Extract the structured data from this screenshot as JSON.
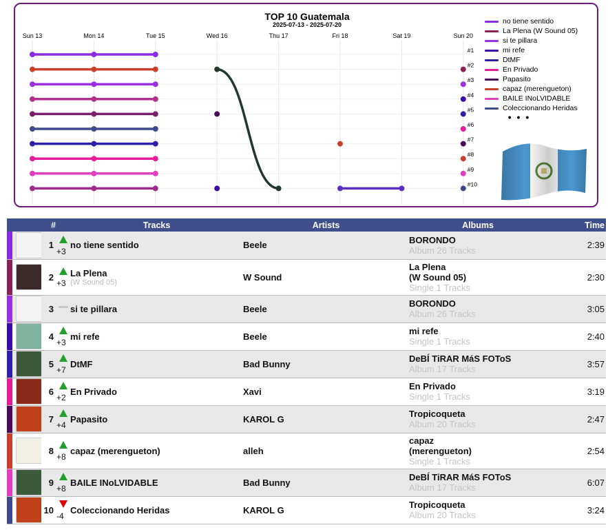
{
  "chart_data": {
    "type": "line",
    "title": "TOP 10 Guatemala",
    "subtitle": "2025-07-13 - 2025-07-20",
    "x": [
      "Sun 13",
      "Mon 14",
      "Tue 15",
      "Wed 16",
      "Thu 17",
      "Fri 18",
      "Sat 19",
      "Sun 20"
    ],
    "rank_labels": [
      "#1",
      "#2",
      "#3",
      "#4",
      "#5",
      "#6",
      "#7",
      "#8",
      "#9",
      "#10"
    ],
    "ylim": [
      1,
      10
    ],
    "y_inverted": true,
    "series": [
      {
        "name": "no tiene sentido",
        "color": "#8a2be2",
        "values": [
          1,
          1,
          1,
          null,
          null,
          null,
          null,
          null
        ]
      },
      {
        "name": "La Plena (W Sound 05)",
        "color": "#8b2257",
        "values": [
          null,
          null,
          null,
          null,
          null,
          null,
          null,
          2
        ]
      },
      {
        "name": "si te pillara",
        "color": "#9b30e0",
        "values": [
          3,
          3,
          3,
          null,
          null,
          null,
          null,
          3
        ]
      },
      {
        "name": "mi refe",
        "color": "#3a0ca3",
        "values": [
          null,
          null,
          null,
          10,
          null,
          null,
          null,
          4
        ]
      },
      {
        "name": "DtMF",
        "color": "#2e1fa8",
        "values": [
          7,
          7,
          7,
          null,
          null,
          null,
          null,
          5
        ]
      },
      {
        "name": "En Privado",
        "color": "#e61c9a",
        "values": [
          8,
          8,
          8,
          null,
          null,
          null,
          null,
          6
        ]
      },
      {
        "name": "Papasito",
        "color": "#4a0a5a",
        "values": [
          null,
          null,
          null,
          5,
          null,
          null,
          null,
          7
        ]
      },
      {
        "name": "capaz (merengueton)",
        "color": "#c8402a",
        "values": [
          2,
          2,
          2,
          null,
          null,
          7,
          null,
          8
        ]
      },
      {
        "name": "BAILE INoLVIDABLE",
        "color": "#e040c0",
        "values": [
          9,
          9,
          9,
          null,
          null,
          null,
          null,
          9
        ]
      },
      {
        "name": "Coleccionando Heridas",
        "color": "#3f4a8c",
        "values": [
          6,
          6,
          6,
          null,
          null,
          null,
          null,
          10
        ]
      },
      {
        "name": "",
        "color": "#1f3a2a",
        "values": [
          null,
          null,
          null,
          2,
          10,
          null,
          null,
          null
        ]
      },
      {
        "name": "",
        "color": "#9e2a8a",
        "values": [
          10,
          10,
          10,
          null,
          null,
          null,
          null,
          null
        ]
      },
      {
        "name": "",
        "color": "#7a1f6e",
        "values": [
          5,
          5,
          5,
          null,
          null,
          null,
          null,
          null
        ]
      },
      {
        "name": "",
        "color": "#5a2fc0",
        "values": [
          null,
          null,
          null,
          null,
          null,
          10,
          10,
          null
        ]
      },
      {
        "name": "",
        "color": "#b0308a",
        "values": [
          4,
          4,
          4,
          null,
          null,
          null,
          null,
          null
        ]
      }
    ],
    "legend_placement": "right",
    "grid": true
  },
  "legend": {
    "items": [
      {
        "label": "no tiene sentido",
        "color": "#8a2be2"
      },
      {
        "label": "La Plena (W Sound 05)",
        "color": "#8b2257"
      },
      {
        "label": "si te pillara",
        "color": "#9b30e0"
      },
      {
        "label": "mi refe",
        "color": "#3a0ca3"
      },
      {
        "label": "DtMF",
        "color": "#2e1fa8"
      },
      {
        "label": "En Privado",
        "color": "#e61c9a"
      },
      {
        "label": "Papasito",
        "color": "#4a0a5a"
      },
      {
        "label": "capaz (merengueton)",
        "color": "#c8402a"
      },
      {
        "label": "BAILE INoLVIDABLE",
        "color": "#e040c0"
      },
      {
        "label": "Coleccionando Heridas",
        "color": "#3f4a8c"
      }
    ],
    "more": "• • •"
  },
  "table": {
    "headers": {
      "rank": "#",
      "tracks": "Tracks",
      "artists": "Artists",
      "albums": "Albums",
      "time": "Time"
    },
    "rows": [
      {
        "rank": "1",
        "dir": "up",
        "change": "+3",
        "track": "no tiene sentido",
        "track_sub": "",
        "artist": "Beele",
        "album": "BORONDO",
        "album_sub": "Album 26 Tracks",
        "time": "2:39",
        "color": "#8a2be2",
        "cover": "#f4f4f4"
      },
      {
        "rank": "2",
        "dir": "up",
        "change": "+3",
        "track": "La Plena",
        "track_sub": "(W Sound 05)",
        "artist": "W Sound",
        "album": "La Plena\n(W Sound 05)",
        "album_sub": "Single 1 Tracks",
        "time": "2:30",
        "color": "#8b2257",
        "cover": "#3a2a2a"
      },
      {
        "rank": "3",
        "dir": "same",
        "change": "",
        "track": "si te pillara",
        "track_sub": "",
        "artist": "Beele",
        "album": "BORONDO",
        "album_sub": "Album 26 Tracks",
        "time": "3:05",
        "color": "#9b30e0",
        "cover": "#f4f4f4"
      },
      {
        "rank": "4",
        "dir": "up",
        "change": "+3",
        "track": "mi refe",
        "track_sub": "",
        "artist": "Beele",
        "album": "mi refe",
        "album_sub": "Single 1 Tracks",
        "time": "2:40",
        "color": "#3a0ca3",
        "cover": "#7fb3a0"
      },
      {
        "rank": "5",
        "dir": "up",
        "change": "+7",
        "track": "DtMF",
        "track_sub": "",
        "artist": "Bad Bunny",
        "album": "DeBÍ TiRAR MáS FOToS",
        "album_sub": "Album 17 Tracks",
        "time": "3:57",
        "color": "#2e1fa8",
        "cover": "#3d5a3a"
      },
      {
        "rank": "6",
        "dir": "up",
        "change": "+2",
        "track": "En Privado",
        "track_sub": "",
        "artist": "Xavi",
        "album": "En Privado",
        "album_sub": "Single 1 Tracks",
        "time": "3:19",
        "color": "#e61c9a",
        "cover": "#8a2a1a"
      },
      {
        "rank": "7",
        "dir": "up",
        "change": "+4",
        "track": "Papasito",
        "track_sub": "",
        "artist": "KAROL G",
        "album": "Tropicoqueta",
        "album_sub": "Album 20 Tracks",
        "time": "2:47",
        "color": "#4a0a5a",
        "cover": "#c0401a"
      },
      {
        "rank": "8",
        "dir": "up",
        "change": "+8",
        "track": "capaz (merengueton)",
        "track_sub": "",
        "artist": "alleh",
        "album": "capaz\n(merengueton)",
        "album_sub": "Single 1 Tracks",
        "time": "2:54",
        "color": "#c8402a",
        "cover": "#f2efe6"
      },
      {
        "rank": "9",
        "dir": "up",
        "change": "+8",
        "track": "BAILE INoLVIDABLE",
        "track_sub": "",
        "artist": "Bad Bunny",
        "album": "DeBÍ TiRAR MáS FOToS",
        "album_sub": "Album 17 Tracks",
        "time": "6:07",
        "color": "#e040c0",
        "cover": "#3d5a3a"
      },
      {
        "rank": "10",
        "dir": "down",
        "change": "-4",
        "track": "Coleccionando Heridas",
        "track_sub": "",
        "artist": "KAROL G",
        "album": "Tropicoqueta",
        "album_sub": "Album 20 Tracks",
        "time": "3:24",
        "color": "#3f4a8c",
        "cover": "#c0401a"
      }
    ]
  }
}
